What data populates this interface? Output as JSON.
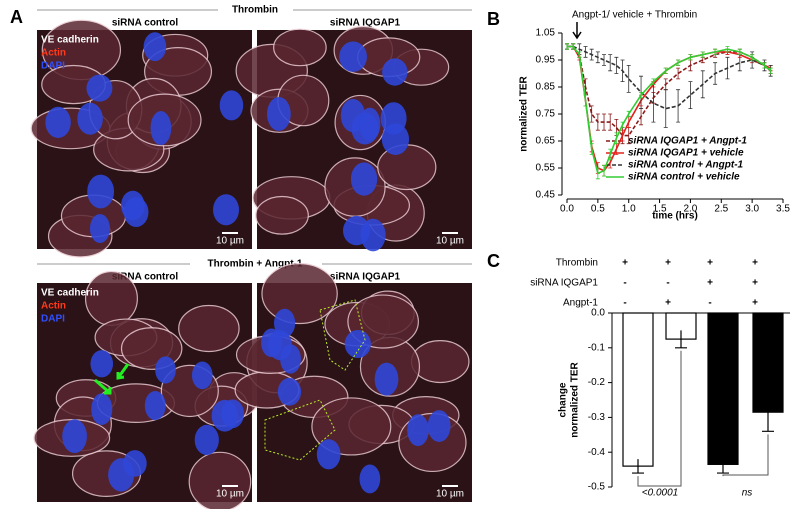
{
  "panel_a": {
    "label": "A",
    "top_title": "Thrombin",
    "bottom_title": "Thrombin + Angpt-1",
    "columns": [
      "siRNA control",
      "siRNA IQGAP1"
    ],
    "stain_labels": [
      "VE cadherin",
      "Actin",
      "DAPI"
    ],
    "scale_bar": "10 µm"
  },
  "chart_data": [
    {
      "type": "line",
      "panel_label": "B",
      "annotation": "Angpt-1/ vehicle + Thrombin",
      "x_label": "time (hrs)",
      "y_label": "normalized TER",
      "x": [
        0,
        0.1,
        0.2,
        0.3,
        0.4,
        0.5,
        0.6,
        0.7,
        0.8,
        0.9,
        1.0,
        1.2,
        1.4,
        1.6,
        1.8,
        2.0,
        2.2,
        2.4,
        2.6,
        2.8,
        3.0,
        3.2,
        3.3
      ],
      "xlim": [
        0,
        3.5
      ],
      "xticks": [
        {
          "value": 0,
          "label": "0.0"
        },
        0.5,
        {
          "value": 1,
          "label": "1.0"
        },
        1.5,
        {
          "value": 2,
          "label": "2.0"
        },
        2.5,
        {
          "value": 3,
          "label": "3.0"
        },
        3.5
      ],
      "ylim": [
        0.45,
        1.05
      ],
      "yticks": [
        1.05,
        0.95,
        0.85,
        0.75,
        0.65,
        0.55,
        0.45
      ],
      "series": [
        {
          "name": "siRNA IQGAP1 + Angpt-1",
          "color": "#8b1a1a",
          "dash": true,
          "values": [
            1.0,
            1.0,
            0.97,
            0.85,
            0.75,
            0.72,
            0.72,
            0.72,
            0.7,
            0.67,
            0.67,
            0.74,
            0.81,
            0.86,
            0.9,
            0.93,
            0.95,
            0.97,
            0.98,
            0.98,
            0.96,
            0.93,
            0.91
          ],
          "errors": [
            0.01,
            0.01,
            0.01,
            0.03,
            0.03,
            0.03,
            0.03,
            0.03,
            0.03,
            0.03,
            0.03,
            0.03,
            0.02,
            0.02,
            0.02,
            0.02,
            0.01,
            0.01,
            0.01,
            0.01,
            0.01,
            0.01,
            0.01
          ]
        },
        {
          "name": "siRNA IQGAP1 + vehicle",
          "color": "#e3201b",
          "dash": false,
          "values": [
            1.0,
            1.0,
            0.96,
            0.8,
            0.63,
            0.55,
            0.54,
            0.57,
            0.62,
            0.67,
            0.72,
            0.8,
            0.86,
            0.91,
            0.94,
            0.96,
            0.97,
            0.98,
            0.98,
            0.97,
            0.95,
            0.93,
            0.92
          ],
          "errors": [
            0.01,
            0.01,
            0.01,
            0.02,
            0.02,
            0.02,
            0.02,
            0.02,
            0.02,
            0.02,
            0.02,
            0.02,
            0.01,
            0.01,
            0.01,
            0.01,
            0.01,
            0.01,
            0.01,
            0.01,
            0.01,
            0.01,
            0.01
          ]
        },
        {
          "name": "siRNA control + Angpt-1",
          "color": "#333333",
          "dash": true,
          "values": [
            1.0,
            1.0,
            0.99,
            0.98,
            0.97,
            0.96,
            0.95,
            0.94,
            0.93,
            0.91,
            0.88,
            0.83,
            0.79,
            0.77,
            0.78,
            0.82,
            0.86,
            0.9,
            0.92,
            0.94,
            0.95,
            0.93,
            0.91
          ],
          "errors": [
            0.01,
            0.01,
            0.02,
            0.02,
            0.02,
            0.02,
            0.02,
            0.03,
            0.03,
            0.04,
            0.05,
            0.06,
            0.07,
            0.07,
            0.06,
            0.05,
            0.05,
            0.04,
            0.04,
            0.03,
            0.03,
            0.02,
            0.02
          ]
        },
        {
          "name": "siRNA control + vehicle",
          "color": "#33cc33",
          "dash": false,
          "values": [
            1.0,
            1.0,
            0.97,
            0.8,
            0.62,
            0.53,
            0.54,
            0.6,
            0.66,
            0.71,
            0.75,
            0.82,
            0.87,
            0.91,
            0.94,
            0.96,
            0.97,
            0.98,
            0.99,
            0.98,
            0.96,
            0.93,
            0.91
          ],
          "errors": [
            0.01,
            0.01,
            0.01,
            0.02,
            0.02,
            0.02,
            0.02,
            0.02,
            0.02,
            0.01,
            0.01,
            0.01,
            0.01,
            0.01,
            0.01,
            0.01,
            0.01,
            0.01,
            0.01,
            0.01,
            0.01,
            0.01,
            0.01
          ]
        }
      ]
    },
    {
      "type": "bar",
      "panel_label": "C",
      "y_label": [
        "change",
        "normalized TER"
      ],
      "conditions": [
        {
          "label": "Thrombin",
          "marks": [
            "+",
            "+",
            "+",
            "+"
          ]
        },
        {
          "label": "siRNA IQGAP1",
          "marks": [
            "-",
            "-",
            "+",
            "+"
          ]
        },
        {
          "label": "Angpt-1",
          "marks": [
            "-",
            "+",
            "-",
            "+"
          ]
        }
      ],
      "values": [
        -0.44,
        -0.075,
        -0.435,
        -0.285
      ],
      "errors": [
        0.02,
        0.025,
        0.025,
        0.055
      ],
      "colors": [
        "#ffffff",
        "#ffffff",
        "#000000",
        "#000000"
      ],
      "ylim": [
        -0.5,
        0
      ],
      "yticks": [
        {
          "value": 0,
          "label": "0.0"
        },
        -0.1,
        -0.2,
        -0.3,
        -0.4,
        -0.5
      ],
      "annotations": [
        "<0.0001",
        "ns"
      ]
    }
  ]
}
